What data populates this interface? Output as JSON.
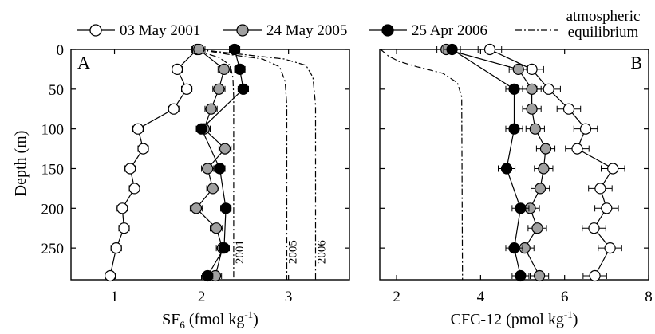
{
  "legend": {
    "entries": [
      {
        "key": "s2001",
        "label": "03 May 2001",
        "fill": "#ffffff"
      },
      {
        "key": "s2005",
        "label": "24 May 2005",
        "fill": "#a0a0a0"
      },
      {
        "key": "s2006",
        "label": "25 Apr 2006",
        "fill": "#000000"
      }
    ],
    "equilibrium_label_line1": "atmospheric",
    "equilibrium_label_line2": "equilibrium"
  },
  "ylabel": "Depth (m)",
  "chart_data": [
    {
      "type": "line",
      "panel": "A",
      "xlabel_main": "SF",
      "xlabel_sub": "6",
      "xlabel_unit": " (fmol kg",
      "xlabel_sup": "-1",
      "xlabel_close": ")",
      "xlim": [
        0.5,
        3.7
      ],
      "ylim": [
        0,
        290
      ],
      "xticks": [
        1,
        2,
        3
      ],
      "yticks": [
        0,
        50,
        100,
        150,
        200,
        250
      ],
      "series": [
        {
          "key": "s2001",
          "points": [
            [
              1.95,
              0
            ],
            [
              1.72,
              25
            ],
            [
              1.83,
              50
            ],
            [
              1.68,
              75
            ],
            [
              1.27,
              100
            ],
            [
              1.33,
              125
            ],
            [
              1.18,
              150
            ],
            [
              1.23,
              175
            ],
            [
              1.09,
              200
            ],
            [
              1.11,
              225
            ],
            [
              1.02,
              250
            ],
            [
              0.95,
              285
            ]
          ],
          "xerr": 0.06
        },
        {
          "key": "s2005",
          "points": [
            [
              1.97,
              0
            ],
            [
              2.26,
              25
            ],
            [
              2.2,
              50
            ],
            [
              2.11,
              75
            ],
            [
              2.03,
              100
            ],
            [
              2.27,
              125
            ],
            [
              2.07,
              150
            ],
            [
              2.13,
              175
            ],
            [
              1.94,
              200
            ],
            [
              2.17,
              225
            ],
            [
              2.24,
              250
            ],
            [
              2.16,
              285
            ]
          ],
          "xerr": 0.07
        },
        {
          "key": "s2006",
          "points": [
            [
              2.38,
              0
            ],
            [
              2.44,
              25
            ],
            [
              2.48,
              50
            ],
            [
              2.0,
              100
            ],
            [
              2.21,
              150
            ],
            [
              2.28,
              200
            ],
            [
              2.26,
              250
            ],
            [
              2.07,
              285
            ]
          ],
          "xerr": 0.06
        }
      ],
      "equilibrium": [
        {
          "year_label": "2001",
          "points": [
            [
              1.96,
              0
            ],
            [
              2.05,
              5
            ],
            [
              2.2,
              10
            ],
            [
              2.33,
              20
            ],
            [
              2.36,
              35
            ],
            [
              2.37,
              60
            ],
            [
              2.37,
              290
            ]
          ]
        },
        {
          "year_label": "2005",
          "points": [
            [
              1.96,
              0
            ],
            [
              2.3,
              6
            ],
            [
              2.7,
              12
            ],
            [
              2.9,
              22
            ],
            [
              2.96,
              40
            ],
            [
              2.98,
              70
            ],
            [
              2.98,
              290
            ]
          ]
        },
        {
          "year_label": "2006",
          "points": [
            [
              1.96,
              0
            ],
            [
              2.45,
              6
            ],
            [
              2.95,
              12
            ],
            [
              3.2,
              20
            ],
            [
              3.28,
              35
            ],
            [
              3.31,
              70
            ],
            [
              3.31,
              290
            ]
          ]
        }
      ]
    },
    {
      "type": "line",
      "panel": "B",
      "xlabel_main": "CFC-12",
      "xlabel_unit": " (pmol kg",
      "xlabel_sup": "-1",
      "xlabel_close": ")",
      "xlim": [
        1.6,
        8
      ],
      "ylim": [
        0,
        290
      ],
      "xticks": [
        2,
        4,
        6,
        8
      ],
      "series": [
        {
          "key": "s2001",
          "points": [
            [
              4.22,
              0
            ],
            [
              5.22,
              25
            ],
            [
              5.62,
              50
            ],
            [
              6.1,
              75
            ],
            [
              6.5,
              100
            ],
            [
              6.3,
              125
            ],
            [
              7.15,
              150
            ],
            [
              6.85,
              175
            ],
            [
              7.0,
              200
            ],
            [
              6.7,
              225
            ],
            [
              7.08,
              250
            ],
            [
              6.72,
              285
            ]
          ],
          "xerr": 0.28
        },
        {
          "key": "s2005",
          "points": [
            [
              3.18,
              0
            ],
            [
              4.9,
              25
            ],
            [
              5.22,
              50
            ],
            [
              5.22,
              75
            ],
            [
              5.3,
              100
            ],
            [
              5.55,
              125
            ],
            [
              5.5,
              150
            ],
            [
              5.42,
              175
            ],
            [
              5.18,
              200
            ],
            [
              5.35,
              225
            ],
            [
              5.05,
              250
            ],
            [
              5.4,
              285
            ]
          ],
          "xerr": 0.22
        },
        {
          "key": "s2006",
          "points": [
            [
              3.32,
              0
            ],
            [
              4.8,
              50
            ],
            [
              4.8,
              100
            ],
            [
              4.62,
              150
            ],
            [
              4.95,
              200
            ],
            [
              4.8,
              250
            ],
            [
              4.95,
              285
            ]
          ],
          "xerr": 0.2
        }
      ],
      "equilibrium": [
        {
          "year_label": "",
          "points": [
            [
              1.62,
              0
            ],
            [
              1.8,
              8
            ],
            [
              2.05,
              15
            ],
            [
              2.5,
              22
            ],
            [
              3.1,
              30
            ],
            [
              3.45,
              42
            ],
            [
              3.55,
              60
            ],
            [
              3.57,
              290
            ]
          ]
        }
      ]
    }
  ]
}
